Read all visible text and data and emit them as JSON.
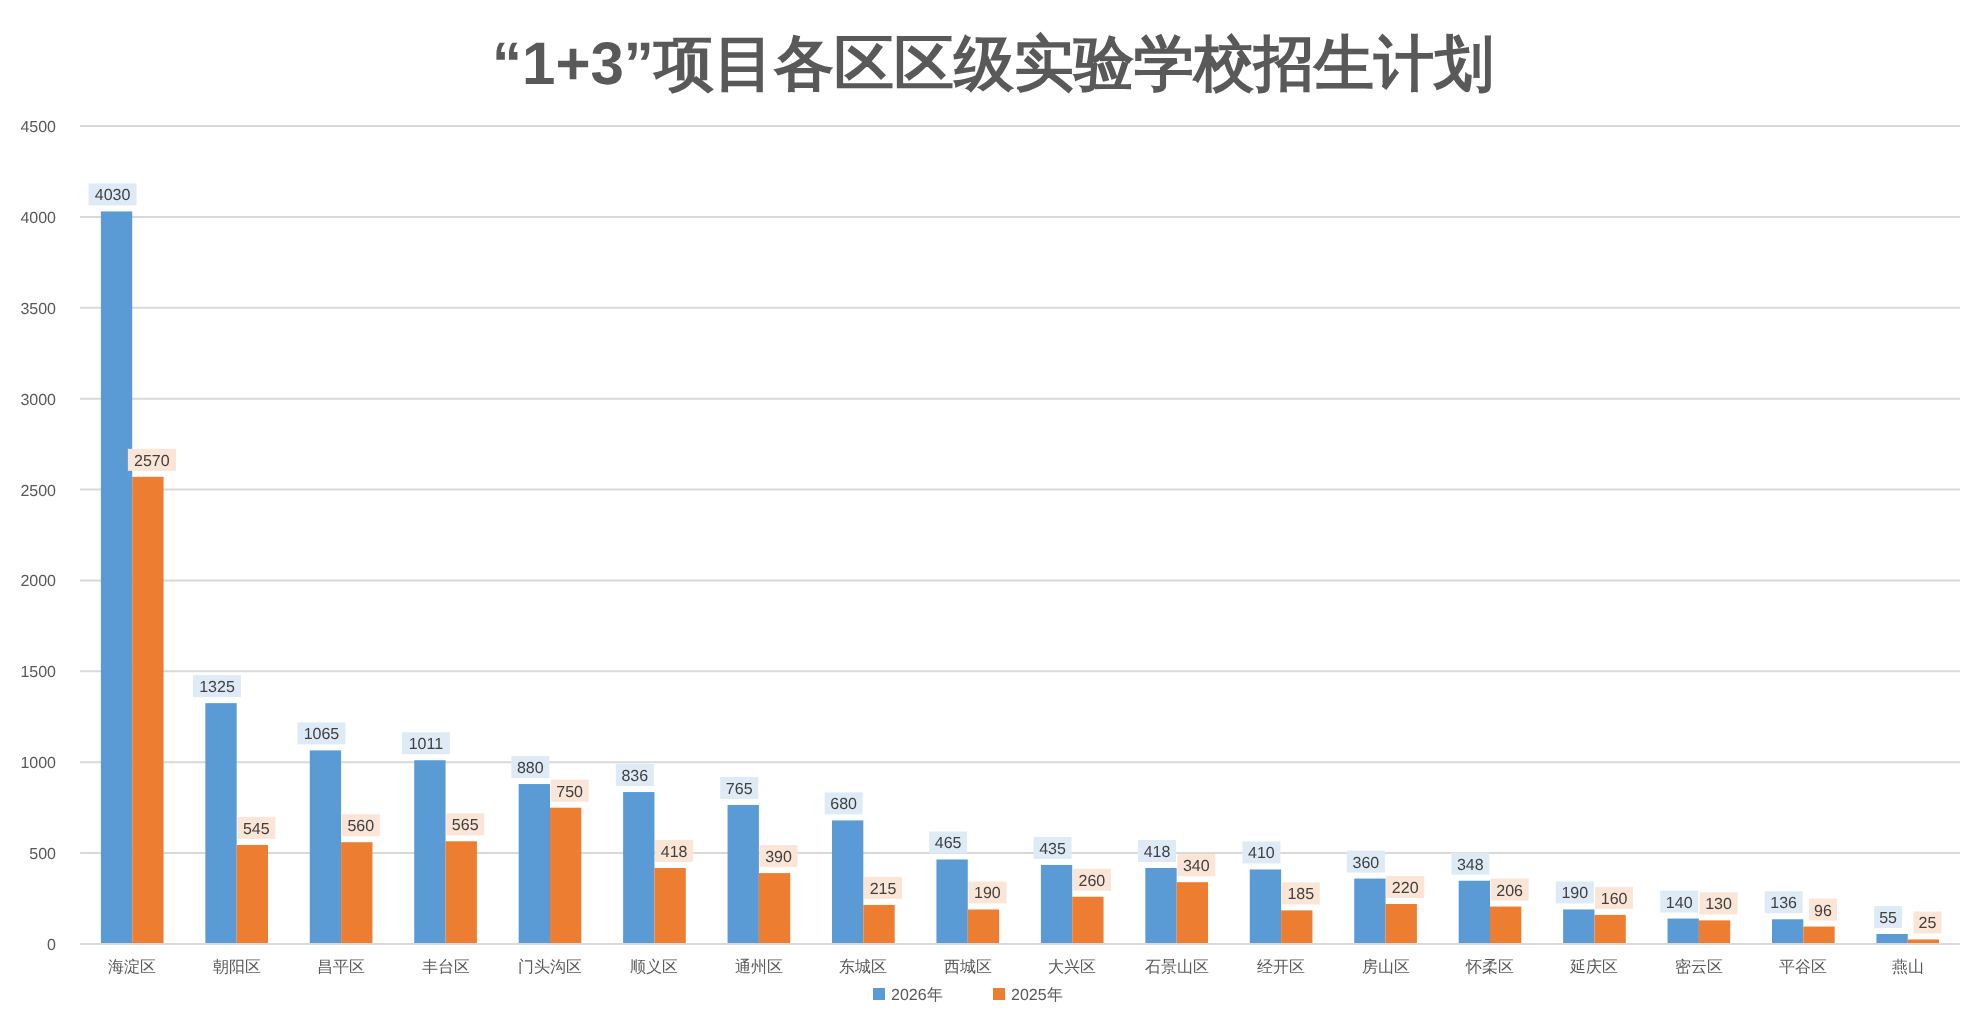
{
  "chart_data": {
    "type": "bar",
    "title": "“1+3”项目各区区级实验学校招生计划",
    "categories": [
      "海淀区",
      "朝阳区",
      "昌平区",
      "丰台区",
      "门头沟区",
      "顺义区",
      "通州区",
      "东城区",
      "西城区",
      "大兴区",
      "石景山区",
      "经开区",
      "房山区",
      "怀柔区",
      "延庆区",
      "密云区",
      "平谷区",
      "燕山"
    ],
    "series": [
      {
        "name": "2026年",
        "color": "#5b9bd5",
        "values": [
          4030,
          1325,
          1065,
          1011,
          880,
          836,
          765,
          680,
          465,
          435,
          418,
          410,
          360,
          348,
          190,
          140,
          136,
          55
        ]
      },
      {
        "name": "2025年",
        "color": "#ed7d31",
        "values": [
          2570,
          545,
          560,
          565,
          750,
          418,
          390,
          215,
          190,
          260,
          340,
          185,
          220,
          206,
          160,
          130,
          96,
          25
        ]
      }
    ],
    "ylim": [
      0,
      4500
    ],
    "yticks": [
      0,
      500,
      1000,
      1500,
      2000,
      2500,
      3000,
      3500,
      4000,
      4500
    ],
    "grid": "y",
    "legend": "bottom",
    "data_labels": true
  }
}
